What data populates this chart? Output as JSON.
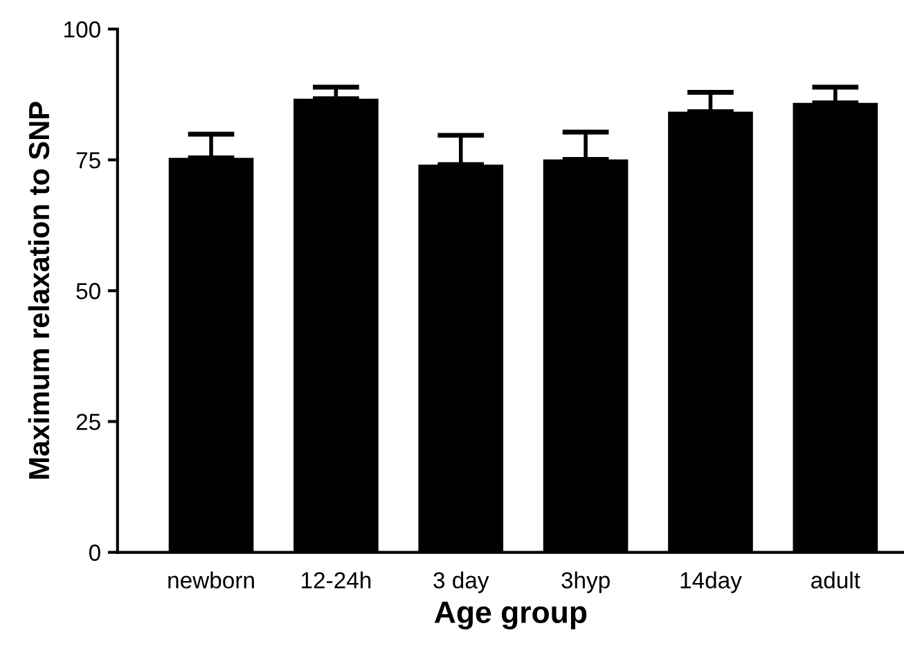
{
  "chart_data": {
    "type": "bar",
    "xlabel": "Age group",
    "ylabel": "Maximum relaxation to SNP",
    "categories": [
      "newborn",
      "12-24h",
      "3 day",
      "3hyp",
      "14day",
      "adult"
    ],
    "values": [
      75.4,
      86.7,
      74.1,
      75.1,
      84.2,
      85.9
    ],
    "errors": [
      [
        75.4,
        79.9
      ],
      [
        86.7,
        88.9
      ],
      [
        74.1,
        79.7
      ],
      [
        75.1,
        80.3
      ],
      [
        84.2,
        87.9
      ],
      [
        85.9,
        88.9
      ]
    ],
    "color": "#000000",
    "ylim": [
      0,
      100
    ],
    "yticks": [
      0,
      25,
      50,
      75,
      100
    ],
    "grid": false,
    "legend": false
  }
}
